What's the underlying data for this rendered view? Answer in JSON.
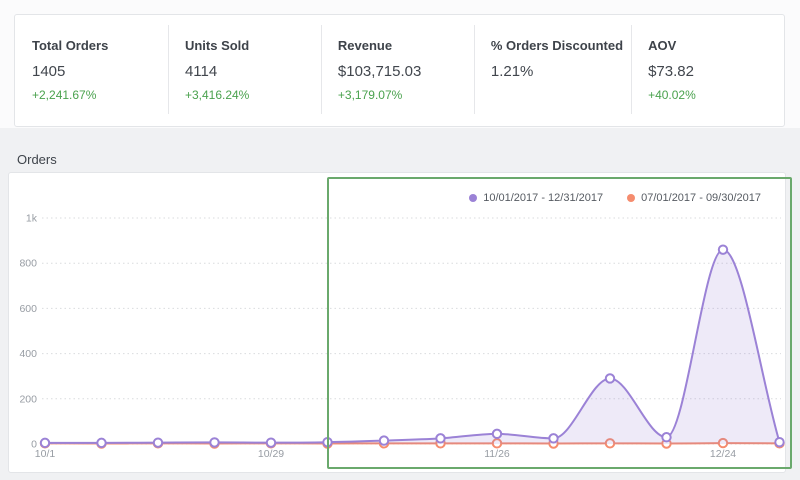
{
  "stats": {
    "items": [
      {
        "label": "Total Orders",
        "value": "1405",
        "delta": "+2,241.67%"
      },
      {
        "label": "Units Sold",
        "value": "4114",
        "delta": "+3,416.24%"
      },
      {
        "label": "Revenue",
        "value": "$103,715.03",
        "delta": "+3,179.07%"
      },
      {
        "label": "% Orders Discounted",
        "value": "1.21%",
        "delta": ""
      },
      {
        "label": "AOV",
        "value": "$73.82",
        "delta": "+40.02%"
      }
    ]
  },
  "chart_section": {
    "title": "Orders"
  },
  "chart_data": {
    "type": "area",
    "title": "Orders",
    "x": [
      "10/1",
      "10/8",
      "10/15",
      "10/22",
      "10/29",
      "11/5",
      "11/12",
      "11/19",
      "11/26",
      "12/3",
      "12/10",
      "12/17",
      "12/24",
      "12/31"
    ],
    "x_tick_indices": [
      0,
      4,
      8,
      12
    ],
    "x_tick_labels": [
      "10/1",
      "10/29",
      "11/26",
      "12/24"
    ],
    "y_ticks": [
      0,
      200,
      400,
      600,
      800,
      1000
    ],
    "y_tick_labels": [
      "0",
      "200",
      "400",
      "600",
      "800",
      "1k"
    ],
    "ylim": [
      0,
      1000
    ],
    "grid": "dotted horizontal",
    "legend_position": "top-right",
    "series": [
      {
        "name": "10/01/2017 - 12/31/2017",
        "color": "#9b82d6",
        "fill": true,
        "values": [
          5,
          5,
          6,
          7,
          6,
          8,
          15,
          25,
          45,
          25,
          290,
          30,
          860,
          8
        ]
      },
      {
        "name": "07/01/2017 - 09/30/2017",
        "color": "#f58c6e",
        "fill": false,
        "values": [
          3,
          2,
          3,
          2,
          3,
          2,
          3,
          3,
          3,
          2,
          3,
          2,
          4,
          3
        ]
      }
    ],
    "annotation": "green rectangle highlighting 11/5 through 12/31 region"
  },
  "colors": {
    "delta_green": "#4aa24e",
    "annotation_green": "#6aa96c",
    "series_purple": "#9b82d6",
    "series_purple_fill": "rgba(151,124,212,0.16)",
    "series_orange": "#f58c6e",
    "gridline": "#d9dbde",
    "axis_text": "#979ca3"
  }
}
